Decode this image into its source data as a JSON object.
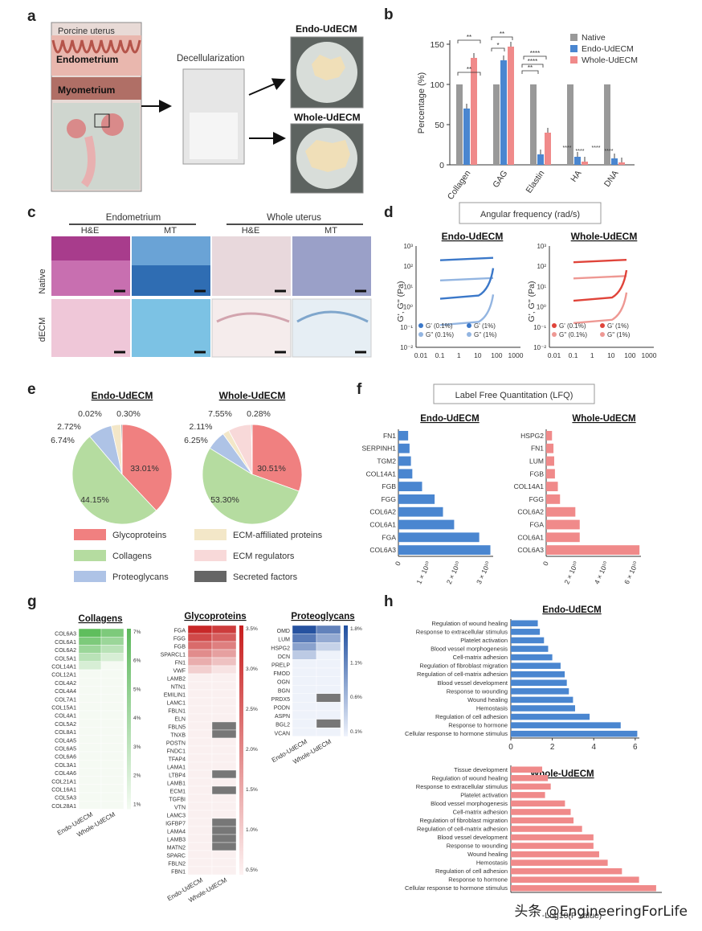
{
  "panel_labels": [
    "a",
    "b",
    "c",
    "d",
    "e",
    "f",
    "g",
    "h"
  ],
  "panel_a": {
    "porcine_uterus": "Porcine uterus",
    "endometrium": "Endometrium",
    "myometrium": "Myometrium",
    "decellularization": "Decellularization",
    "endo_udecm": "Endo-UdECM",
    "whole_udecm": "Whole-UdECM"
  },
  "panel_c": {
    "endometrium": "Endometrium",
    "whole_uterus": "Whole uterus",
    "stains": [
      "H&E",
      "MT",
      "H&E",
      "MT"
    ],
    "rows": [
      "Native",
      "dECM"
    ]
  },
  "panel_d": {
    "header": "Angular frequency (rad/s)",
    "ylabel": "G', G'' (Pa)",
    "xticks": [
      "0.01",
      "0.1",
      "1",
      "10",
      "100",
      "1000"
    ],
    "yticks": [
      "10³",
      "10²",
      "10¹",
      "10⁰",
      "10⁻¹",
      "10⁻²"
    ]
  },
  "panel_f": {
    "header": "Label Free Quantitation (LFQ)"
  },
  "panel_g": {
    "collagens_title": "Collagens",
    "glyco_title": "Glycoproteins",
    "proteo_title": "Proteoglycans",
    "col_labels": [
      "Endo-UdECM",
      "Whole-UdECM"
    ],
    "collagen_rows": [
      "COL6A3",
      "COL6A1",
      "COL6A2",
      "COL5A1",
      "COL14A1",
      "COL12A1",
      "COL4A2",
      "COL4A4",
      "COL7A1",
      "COL15A1",
      "COL4A1",
      "COL5A2",
      "COL8A1",
      "COL4A5",
      "COL6A5",
      "COL6A6",
      "COL3A1",
      "COL4A6",
      "COL21A1",
      "COL16A1",
      "COL5A3",
      "COL28A1"
    ],
    "collagen_scale": [
      "7%",
      "6%",
      "5%",
      "4%",
      "3%",
      "2%",
      "1%"
    ],
    "glyco_rows": [
      "FGA",
      "FGG",
      "FGB",
      "SPARCL1",
      "FN1",
      "VWF",
      "LAMB2",
      "NTN1",
      "EMILIN1",
      "LAMC1",
      "FBLN1",
      "ELN",
      "FBLN5",
      "TNXB",
      "POSTN",
      "FNDC1",
      "TFAP4",
      "LAMA1",
      "LTBP4",
      "LAMB1",
      "ECM1",
      "TGFBI",
      "VTN",
      "LAMC3",
      "IGFBP7",
      "LAMA4",
      "LAMB3",
      "MATN2",
      "SPARC",
      "FBLN2",
      "FBN1"
    ],
    "glyco_scale": [
      "3.5%",
      "3.0%",
      "2.5%",
      "2.0%",
      "1.5%",
      "1.0%",
      "0.5%"
    ],
    "proteo_rows": [
      "OMD",
      "LUM",
      "HSPG2",
      "DCN",
      "PRELP",
      "FMOD",
      "OGN",
      "BGN",
      "PRDX5",
      "PODN",
      "ASPN",
      "BGL2",
      "VCAN"
    ],
    "proteo_scale": [
      "1.8%",
      "1.1%",
      "0.6%",
      "0.1%"
    ]
  },
  "watermark": "头条 @EngineeringForLife",
  "chart_data": [
    {
      "id": "b",
      "type": "bar",
      "categories": [
        "Collagen",
        "GAG",
        "Elastin",
        "HA",
        "DNA"
      ],
      "series": [
        {
          "name": "Native",
          "color": "#999999",
          "values": [
            100,
            100,
            100,
            100,
            100
          ]
        },
        {
          "name": "Endo-UdECM",
          "color": "#4a86d0",
          "values": [
            70,
            130,
            13,
            10,
            8
          ]
        },
        {
          "name": "Whole-UdECM",
          "color": "#f08a8a",
          "values": [
            133,
            147,
            40,
            4,
            3
          ]
        }
      ],
      "ylabel": "Percentage (%)",
      "ylim": [
        0,
        150
      ],
      "yticks": [
        "0",
        "50",
        "100",
        "150"
      ],
      "significance": [
        "**",
        "**",
        "**",
        "*",
        "**",
        "****",
        "****",
        "****",
        "****",
        "****",
        "****"
      ]
    },
    {
      "id": "d",
      "type": "line",
      "title": "Endo-UdECM",
      "legend": [
        "G' (0.1%)",
        "G' (1%)",
        "G'' (0.1%)",
        "G'' (1%)"
      ],
      "color": "#3b78c9",
      "series_log10_Pa": [
        2.3,
        1.3,
        0.4,
        -0.9
      ]
    },
    {
      "id": "d2",
      "type": "line",
      "title": "Whole-UdECM",
      "legend": [
        "G' (0.1%)",
        "G' (1%)",
        "G'' (0.1%)",
        "G'' (1%)"
      ],
      "color": "#e0443a",
      "series_log10_Pa": [
        2.2,
        1.4,
        0.3,
        -0.8
      ]
    },
    {
      "id": "e1",
      "type": "pie",
      "title": "Endo-UdECM",
      "labels": [
        "Glycoproteins",
        "Collagens",
        "Proteoglycans",
        "ECM-affiliated proteins",
        "ECM regulators",
        "Secreted factors"
      ],
      "values": [
        33.01,
        44.15,
        6.74,
        2.72,
        0.02,
        0.3
      ],
      "value_labels": [
        "33.01%",
        "44.15%",
        "6.74%",
        "2.72%",
        "0.02%",
        "0.30%"
      ]
    },
    {
      "id": "e2",
      "type": "pie",
      "title": "Whole-UdECM",
      "labels": [
        "Glycoproteins",
        "Collagens",
        "Proteoglycans",
        "ECM-affiliated proteins",
        "ECM regulators",
        "Secreted factors"
      ],
      "values": [
        30.51,
        53.3,
        6.25,
        2.11,
        7.55,
        0.28
      ],
      "value_labels": [
        "30.51%",
        "53.30%",
        "6.25%",
        "2.11%",
        "7.55%",
        "0.28%"
      ]
    },
    {
      "id": "f1",
      "type": "bar",
      "orientation": "horizontal",
      "title": "Endo-UdECM",
      "categories": [
        "FN1",
        "SERPINH1",
        "TGM2",
        "COL14A1",
        "FGB",
        "FGG",
        "COL6A2",
        "COL6A1",
        "FGA",
        "COL6A3"
      ],
      "values": [
        0.35,
        0.4,
        0.45,
        0.5,
        0.85,
        1.3,
        1.6,
        2.0,
        2.9,
        3.3
      ],
      "xticks": [
        "0",
        "1 × 10¹⁰",
        "2 × 10¹⁰",
        "3 × 10¹⁰"
      ],
      "xlim": [
        0,
        3.4
      ],
      "unit": "1e10"
    },
    {
      "id": "f2",
      "type": "bar",
      "orientation": "horizontal",
      "title": "Whole-UdECM",
      "categories": [
        "HSPG2",
        "FN1",
        "LUM",
        "FGB",
        "COL14A1",
        "FGG",
        "COL6A2",
        "FGA",
        "COL6A1",
        "COL6A3"
      ],
      "values": [
        0.4,
        0.5,
        0.55,
        0.6,
        0.8,
        0.95,
        2.0,
        2.3,
        2.3,
        6.4
      ],
      "xticks": [
        "0",
        "2 × 10¹⁰",
        "4 × 10¹⁰",
        "6 × 10¹⁰"
      ],
      "xlim": [
        0,
        6.5
      ],
      "unit": "1e10"
    },
    {
      "id": "h1",
      "type": "bar",
      "orientation": "horizontal",
      "title": "Endo-UdECM",
      "categories": [
        "Regulation of wound healing",
        "Response to extracellular stimulus",
        "Platelet activation",
        "Blood vessel morphogenesis",
        "Cell-matrix adhesion",
        "Regulation of fibroblast migration",
        "Regulation of cell-matrix adhesion",
        "Blood vessel development",
        "Response to wounding",
        "Wound healing",
        "Hemostasis",
        "Regulation of cell adhesion",
        "Response to hormone",
        "Cellular response to hormone stimulus"
      ],
      "values": [
        1.3,
        1.4,
        1.6,
        1.8,
        2.0,
        2.4,
        2.6,
        2.7,
        2.8,
        3.0,
        3.1,
        3.8,
        5.3,
        6.1
      ],
      "xticks": [
        "0",
        "2",
        "4",
        "6"
      ],
      "xlim": [
        0,
        6.2
      ]
    },
    {
      "id": "h2",
      "type": "bar",
      "orientation": "horizontal",
      "title": "Whole-UdECM",
      "categories": [
        "Tissue development",
        "Regulation of wound healing",
        "Response to extracellular stimulus",
        "Platelet activation",
        "Blood vessel morphogenesis",
        "Cell-matrix adhesion",
        "Regulation of fibroblast migration",
        "Regulation of cell-matrix adhesion",
        "Blood vessel development",
        "Response to wounding",
        "Wound healing",
        "Hemostasis",
        "Regulation of cell adhesion",
        "Response to hormone",
        "Cellular response to hormone stimulus"
      ],
      "values": [
        1.1,
        1.3,
        1.4,
        1.2,
        1.9,
        2.1,
        2.2,
        2.5,
        2.9,
        2.9,
        3.1,
        3.4,
        3.9,
        4.5,
        5.1
      ],
      "xlabel": "-Log10(P value)",
      "xlim": [
        0,
        5.3
      ]
    }
  ]
}
